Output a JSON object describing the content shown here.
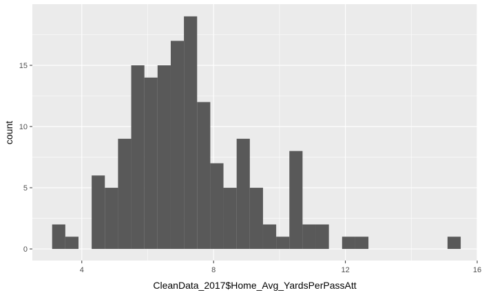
{
  "chart_data": {
    "type": "bar",
    "title": "",
    "xlabel": "CleanData_2017$Home_Avg_YardsPerPassAtt",
    "ylabel": "count",
    "xlim": [
      2.5,
      16
    ],
    "ylim": [
      -0.95,
      20
    ],
    "x_ticks": [
      4,
      8,
      12,
      16
    ],
    "x_tick_labels": [
      "4",
      "8",
      "12",
      "16"
    ],
    "y_ticks": [
      0,
      5,
      10,
      15
    ],
    "y_tick_labels": [
      "0",
      "5",
      "10",
      "15"
    ],
    "bin_start": 3.1,
    "bin_width": 0.4,
    "bins_x": [
      3.3,
      3.7,
      4.1,
      4.5,
      4.9,
      5.3,
      5.7,
      6.1,
      6.5,
      6.9,
      7.3,
      7.7,
      8.1,
      8.5,
      8.9,
      9.3,
      9.7,
      10.1,
      10.5,
      10.9,
      11.3,
      11.7,
      12.1,
      12.5,
      12.9,
      13.3,
      13.7,
      14.1,
      14.5,
      14.9,
      15.3
    ],
    "values": [
      2,
      1,
      0,
      6,
      5,
      9,
      15,
      14,
      15,
      17,
      19,
      12,
      7,
      5,
      9,
      5,
      2,
      1,
      8,
      2,
      2,
      0,
      1,
      1,
      0,
      0,
      0,
      0,
      0,
      0,
      1
    ],
    "grid": true,
    "colors": {
      "panel_background": "#ebebeb",
      "grid": "#ffffff",
      "bar_fill": "#595959"
    }
  }
}
